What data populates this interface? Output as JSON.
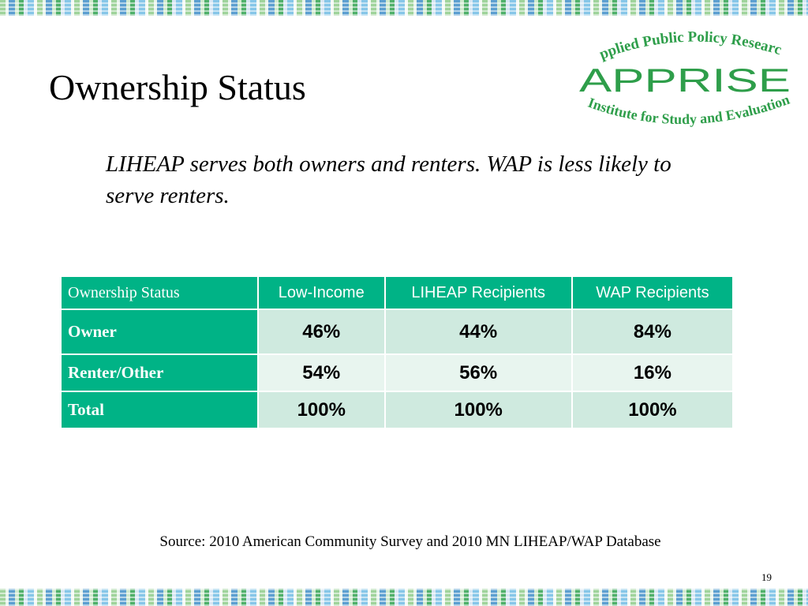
{
  "slide": {
    "title": "Ownership Status",
    "subtitle": "LIHEAP serves both owners and renters. WAP is less likely to serve renters.",
    "source": "Source: 2010 American Community Survey and 2010 MN LIHEAP/WAP Database",
    "page_number": "19"
  },
  "logo": {
    "top_text": "Applied Public Policy Research",
    "name": "APPRISE",
    "bottom_text": "Institute for Study and Evaluation"
  },
  "colors": {
    "header_green": "#00b386",
    "row_tint_dark": "#cfeadf",
    "row_tint_light": "#e8f5ef",
    "logo_green": "#2e9e4a"
  },
  "table": {
    "headers": [
      "Ownership Status",
      "Low-Income",
      "LIHEAP Recipients",
      "WAP Recipients"
    ],
    "rows": [
      {
        "label": "Owner",
        "cells": [
          "46%",
          "44%",
          "84%"
        ]
      },
      {
        "label": "Renter/Other",
        "cells": [
          "54%",
          "56%",
          "16%"
        ]
      },
      {
        "label": "Total",
        "cells": [
          "100%",
          "100%",
          "100%"
        ]
      }
    ]
  }
}
